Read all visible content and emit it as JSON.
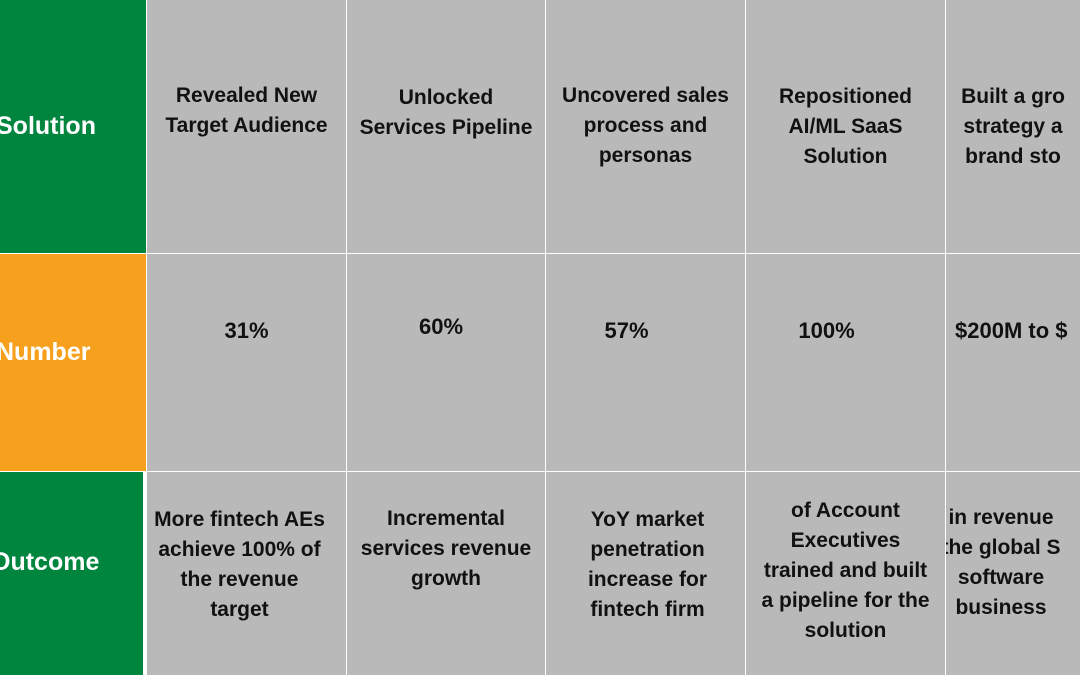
{
  "colors": {
    "solution_row": "#00853f",
    "number_row": "#f7a01d",
    "outcome_row": "#00853f",
    "cell_bg": "#b9b9b9"
  },
  "rows": {
    "solution": {
      "label": "Solution",
      "cells": [
        "Revealed New\nTarget Audience",
        "Unlocked\nServices Pipeline",
        "Uncovered sales\nprocess and\npersonas",
        "Repositioned\nAI/ML SaaS\nSolution",
        "Built a gro\nstrategy a\nbrand sto"
      ]
    },
    "number": {
      "label": "Number",
      "cells": [
        "31%",
        "60%",
        "57%",
        "100%",
        "$200M to $"
      ]
    },
    "outcome": {
      "label": "Outcome",
      "cells": [
        "More fintech AEs\nachieve 100% of\nthe revenue\ntarget",
        "Incremental\nservices revenue\ngrowth",
        "YoY market\npenetration\nincrease for\nfintech firm",
        "of Account\nExecutives\ntrained and built\na pipeline for the\nsolution",
        "in revenue\nthe global S\nsoftware\nbusiness"
      ]
    }
  }
}
